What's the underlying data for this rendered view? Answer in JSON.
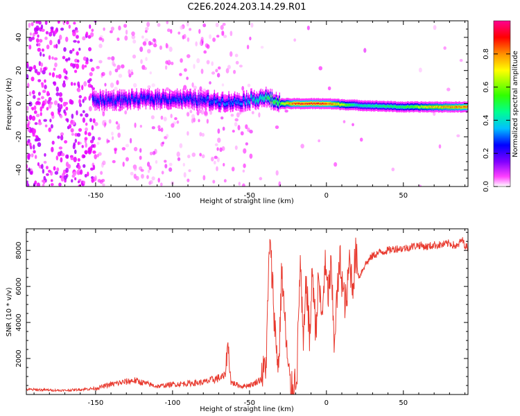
{
  "title": "C2E6.2024.203.14.29.R01",
  "chart_data": [
    {
      "type": "heatmap",
      "xlabel": "Height of straight line (km)",
      "ylabel": "Frequency (Hz)",
      "xlim": [
        -195,
        92
      ],
      "ylim": [
        -50,
        50
      ],
      "x_ticks": [
        -150,
        -100,
        -50,
        0,
        50
      ],
      "y_ticks": [
        -40,
        -20,
        0,
        20,
        40
      ],
      "colorbar": {
        "label": "Normalized spectral amplitude",
        "range": [
          0,
          1
        ],
        "ticks": [
          0.0,
          0.2,
          0.4,
          0.6,
          0.8
        ],
        "colormap": [
          "#ffffff",
          "#ff00ff",
          "#8000ff",
          "#0000ff",
          "#00c0ff",
          "#00ff80",
          "#40ff00",
          "#ffff00",
          "#ff8000",
          "#ff0000",
          "#ff0080"
        ]
      },
      "ridge": {
        "description_points": [
          [
            -150,
            2
          ],
          [
            -100,
            3
          ],
          [
            -60,
            1
          ],
          [
            -45,
            3
          ],
          [
            -40,
            4
          ],
          [
            -30,
            0
          ],
          [
            -20,
            0
          ],
          [
            0,
            0
          ],
          [
            20,
            -1
          ],
          [
            50,
            -2
          ],
          [
            92,
            -2
          ]
        ],
        "peak_amplitude": [
          [
            -150,
            0.35
          ],
          [
            -100,
            0.35
          ],
          [
            -55,
            0.4
          ],
          [
            -40,
            0.55
          ],
          [
            -30,
            0.65
          ],
          [
            -20,
            0.95
          ],
          [
            0,
            0.95
          ],
          [
            20,
            0.5
          ],
          [
            50,
            0.6
          ],
          [
            70,
            0.8
          ],
          [
            92,
            0.9
          ]
        ]
      },
      "grid": false
    },
    {
      "type": "line",
      "xlabel": "Height of straight line (km)",
      "ylabel": "SNR (10 * v/v)",
      "xlim": [
        -195,
        92
      ],
      "ylim": [
        0,
        9200
      ],
      "x_ticks": [
        -150,
        -100,
        -50,
        0,
        50
      ],
      "y_ticks": [
        2000,
        4000,
        6000,
        8000
      ],
      "color": "#e8392e",
      "x": [
        -195,
        -170,
        -150,
        -140,
        -125,
        -110,
        -100,
        -80,
        -66,
        -64,
        -62,
        -55,
        -48,
        -42,
        -39,
        -37,
        -35,
        -33,
        -31,
        -29,
        -27,
        -25,
        -23,
        -21,
        -19,
        -17,
        -15,
        -13,
        -11,
        -9,
        -7,
        -5,
        -3,
        -1,
        1,
        3,
        5,
        7,
        9,
        11,
        13,
        15,
        17,
        19,
        21,
        25,
        30,
        35,
        40,
        45,
        50,
        55,
        60,
        65,
        70,
        75,
        80,
        85,
        88,
        90,
        92
      ],
      "y": [
        250,
        200,
        300,
        500,
        700,
        400,
        500,
        600,
        900,
        2500,
        600,
        400,
        500,
        800,
        2000,
        8500,
        6200,
        3000,
        1500,
        7000,
        4000,
        1500,
        100,
        500,
        1500,
        7500,
        2500,
        6500,
        3000,
        7000,
        3500,
        6500,
        4000,
        7200,
        5500,
        7000,
        3000,
        5500,
        7500,
        5500,
        5000,
        7500,
        6000,
        7800,
        6500,
        7200,
        7700,
        7900,
        8000,
        8100,
        8100,
        8200,
        8300,
        8200,
        8300,
        8300,
        8400,
        8200,
        8600,
        8300,
        8100
      ],
      "grid": false
    }
  ]
}
